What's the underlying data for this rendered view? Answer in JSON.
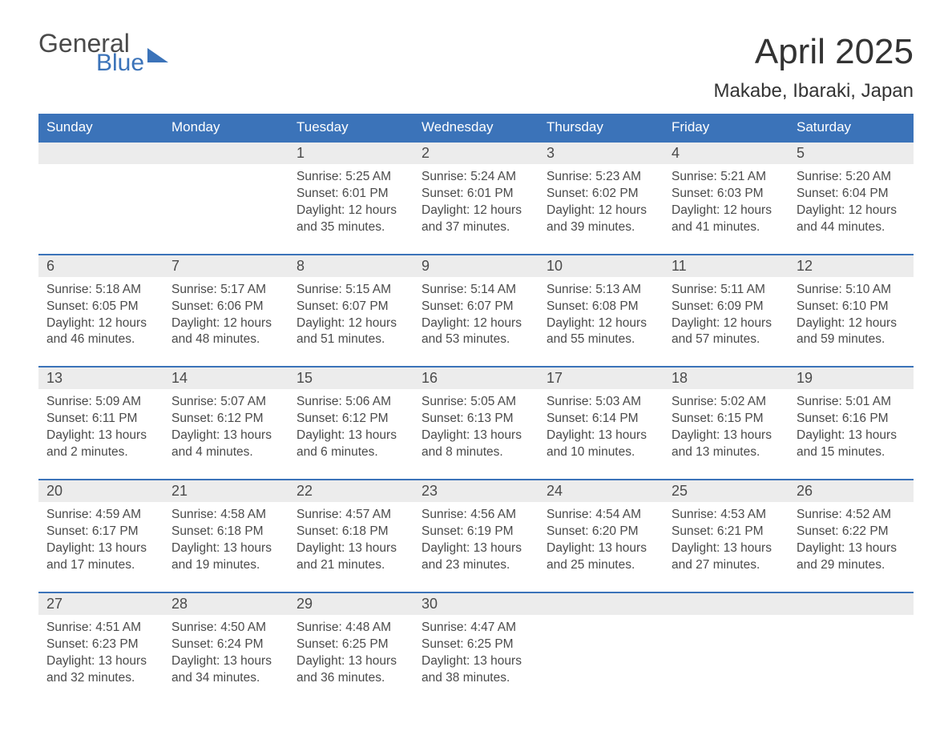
{
  "logo": {
    "general": "General",
    "blue": "Blue"
  },
  "header": {
    "title": "April 2025",
    "subtitle": "Makabe, Ibaraki, Japan"
  },
  "colors": {
    "header_bg": "#3b73b9",
    "header_text": "#ffffff",
    "daynum_bg": "#ececec",
    "body_text": "#4a4a4a",
    "week_border": "#3b73b9",
    "page_bg": "#ffffff",
    "logo_blue": "#3b73b9",
    "logo_gray": "#4a4a4a"
  },
  "typography": {
    "title_fontsize": 44,
    "subtitle_fontsize": 24,
    "dayheader_fontsize": 17,
    "daynum_fontsize": 18,
    "body_fontsize": 15.5
  },
  "calendar": {
    "type": "table",
    "columns": [
      "Sunday",
      "Monday",
      "Tuesday",
      "Wednesday",
      "Thursday",
      "Friday",
      "Saturday"
    ],
    "labels": {
      "sunrise": "Sunrise:",
      "sunset": "Sunset:",
      "daylight_prefix": "Daylight:"
    },
    "weeks": [
      [
        {
          "day": "",
          "sunrise": "",
          "sunset": "",
          "daylight": ""
        },
        {
          "day": "",
          "sunrise": "",
          "sunset": "",
          "daylight": ""
        },
        {
          "day": "1",
          "sunrise": "5:25 AM",
          "sunset": "6:01 PM",
          "daylight": "12 hours and 35 minutes."
        },
        {
          "day": "2",
          "sunrise": "5:24 AM",
          "sunset": "6:01 PM",
          "daylight": "12 hours and 37 minutes."
        },
        {
          "day": "3",
          "sunrise": "5:23 AM",
          "sunset": "6:02 PM",
          "daylight": "12 hours and 39 minutes."
        },
        {
          "day": "4",
          "sunrise": "5:21 AM",
          "sunset": "6:03 PM",
          "daylight": "12 hours and 41 minutes."
        },
        {
          "day": "5",
          "sunrise": "5:20 AM",
          "sunset": "6:04 PM",
          "daylight": "12 hours and 44 minutes."
        }
      ],
      [
        {
          "day": "6",
          "sunrise": "5:18 AM",
          "sunset": "6:05 PM",
          "daylight": "12 hours and 46 minutes."
        },
        {
          "day": "7",
          "sunrise": "5:17 AM",
          "sunset": "6:06 PM",
          "daylight": "12 hours and 48 minutes."
        },
        {
          "day": "8",
          "sunrise": "5:15 AM",
          "sunset": "6:07 PM",
          "daylight": "12 hours and 51 minutes."
        },
        {
          "day": "9",
          "sunrise": "5:14 AM",
          "sunset": "6:07 PM",
          "daylight": "12 hours and 53 minutes."
        },
        {
          "day": "10",
          "sunrise": "5:13 AM",
          "sunset": "6:08 PM",
          "daylight": "12 hours and 55 minutes."
        },
        {
          "day": "11",
          "sunrise": "5:11 AM",
          "sunset": "6:09 PM",
          "daylight": "12 hours and 57 minutes."
        },
        {
          "day": "12",
          "sunrise": "5:10 AM",
          "sunset": "6:10 PM",
          "daylight": "12 hours and 59 minutes."
        }
      ],
      [
        {
          "day": "13",
          "sunrise": "5:09 AM",
          "sunset": "6:11 PM",
          "daylight": "13 hours and 2 minutes."
        },
        {
          "day": "14",
          "sunrise": "5:07 AM",
          "sunset": "6:12 PM",
          "daylight": "13 hours and 4 minutes."
        },
        {
          "day": "15",
          "sunrise": "5:06 AM",
          "sunset": "6:12 PM",
          "daylight": "13 hours and 6 minutes."
        },
        {
          "day": "16",
          "sunrise": "5:05 AM",
          "sunset": "6:13 PM",
          "daylight": "13 hours and 8 minutes."
        },
        {
          "day": "17",
          "sunrise": "5:03 AM",
          "sunset": "6:14 PM",
          "daylight": "13 hours and 10 minutes."
        },
        {
          "day": "18",
          "sunrise": "5:02 AM",
          "sunset": "6:15 PM",
          "daylight": "13 hours and 13 minutes."
        },
        {
          "day": "19",
          "sunrise": "5:01 AM",
          "sunset": "6:16 PM",
          "daylight": "13 hours and 15 minutes."
        }
      ],
      [
        {
          "day": "20",
          "sunrise": "4:59 AM",
          "sunset": "6:17 PM",
          "daylight": "13 hours and 17 minutes."
        },
        {
          "day": "21",
          "sunrise": "4:58 AM",
          "sunset": "6:18 PM",
          "daylight": "13 hours and 19 minutes."
        },
        {
          "day": "22",
          "sunrise": "4:57 AM",
          "sunset": "6:18 PM",
          "daylight": "13 hours and 21 minutes."
        },
        {
          "day": "23",
          "sunrise": "4:56 AM",
          "sunset": "6:19 PM",
          "daylight": "13 hours and 23 minutes."
        },
        {
          "day": "24",
          "sunrise": "4:54 AM",
          "sunset": "6:20 PM",
          "daylight": "13 hours and 25 minutes."
        },
        {
          "day": "25",
          "sunrise": "4:53 AM",
          "sunset": "6:21 PM",
          "daylight": "13 hours and 27 minutes."
        },
        {
          "day": "26",
          "sunrise": "4:52 AM",
          "sunset": "6:22 PM",
          "daylight": "13 hours and 29 minutes."
        }
      ],
      [
        {
          "day": "27",
          "sunrise": "4:51 AM",
          "sunset": "6:23 PM",
          "daylight": "13 hours and 32 minutes."
        },
        {
          "day": "28",
          "sunrise": "4:50 AM",
          "sunset": "6:24 PM",
          "daylight": "13 hours and 34 minutes."
        },
        {
          "day": "29",
          "sunrise": "4:48 AM",
          "sunset": "6:25 PM",
          "daylight": "13 hours and 36 minutes."
        },
        {
          "day": "30",
          "sunrise": "4:47 AM",
          "sunset": "6:25 PM",
          "daylight": "13 hours and 38 minutes."
        },
        {
          "day": "",
          "sunrise": "",
          "sunset": "",
          "daylight": ""
        },
        {
          "day": "",
          "sunrise": "",
          "sunset": "",
          "daylight": ""
        },
        {
          "day": "",
          "sunrise": "",
          "sunset": "",
          "daylight": ""
        }
      ]
    ]
  }
}
